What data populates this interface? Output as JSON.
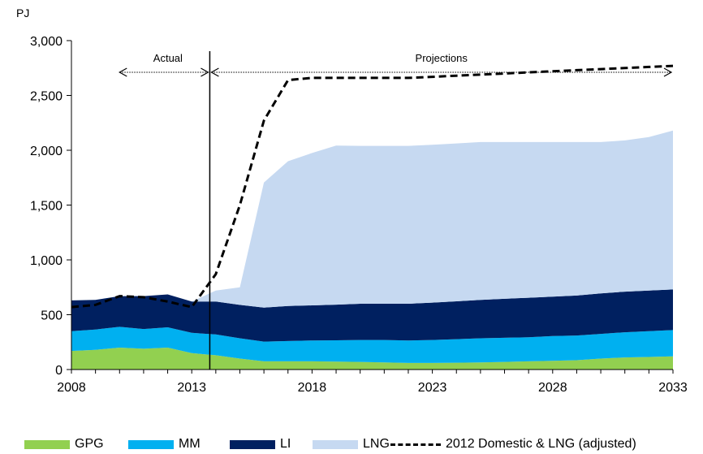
{
  "chart_data": {
    "type": "area",
    "unit_label": "PJ",
    "x": [
      2008,
      2009,
      2010,
      2011,
      2012,
      2013,
      2014,
      2015,
      2016,
      2017,
      2018,
      2019,
      2020,
      2021,
      2022,
      2023,
      2024,
      2025,
      2026,
      2027,
      2028,
      2029,
      2030,
      2031,
      2032,
      2033
    ],
    "x_ticks": [
      2008,
      2013,
      2018,
      2023,
      2028,
      2033
    ],
    "y_ticks": [
      0,
      500,
      1000,
      1500,
      2000,
      2500,
      3000
    ],
    "y_tick_labels": [
      "0",
      "500",
      "1,000",
      "1,500",
      "2,000",
      "2,500",
      "3,000"
    ],
    "ylim": [
      0,
      3000
    ],
    "xlim": [
      2008,
      2033
    ],
    "series": [
      {
        "name": "GPG",
        "color": "#92d050",
        "values": [
          170,
          180,
          200,
          190,
          200,
          150,
          130,
          100,
          75,
          75,
          75,
          72,
          70,
          65,
          60,
          60,
          62,
          65,
          70,
          75,
          80,
          85,
          100,
          110,
          115,
          120
        ]
      },
      {
        "name": "MM",
        "color": "#00b0f0",
        "values": [
          180,
          185,
          190,
          180,
          185,
          185,
          190,
          185,
          180,
          185,
          190,
          195,
          200,
          205,
          205,
          210,
          215,
          220,
          220,
          220,
          225,
          225,
          225,
          230,
          235,
          240
        ]
      },
      {
        "name": "LI",
        "color": "#002060",
        "values": [
          280,
          270,
          280,
          300,
          300,
          285,
          300,
          305,
          310,
          320,
          320,
          325,
          330,
          330,
          335,
          340,
          345,
          350,
          355,
          360,
          360,
          365,
          370,
          370,
          370,
          370
        ]
      },
      {
        "name": "LNG",
        "color": "#c6d9f1",
        "values": [
          0,
          0,
          0,
          0,
          0,
          0,
          100,
          160,
          1140,
          1320,
          1390,
          1450,
          1440,
          1440,
          1440,
          1440,
          1440,
          1440,
          1430,
          1420,
          1410,
          1400,
          1380,
          1380,
          1400,
          1450
        ]
      }
    ],
    "dashed_series": {
      "name": "2012 Domestic & LNG (adjusted)",
      "color": "#000000",
      "values": [
        570,
        590,
        670,
        660,
        620,
        570,
        870,
        1500,
        2270,
        2640,
        2660,
        2660,
        2660,
        2660,
        2660,
        2670,
        2680,
        2690,
        2700,
        2710,
        2720,
        2730,
        2740,
        2750,
        2760,
        2770
      ]
    },
    "divider_year": 2013.75,
    "annotations": {
      "actual": {
        "label": "Actual",
        "from": 2010,
        "to": 2013.75
      },
      "projections": {
        "label": "Projections",
        "from": 2013.75,
        "to": 2033
      }
    },
    "legend_position": "bottom"
  }
}
